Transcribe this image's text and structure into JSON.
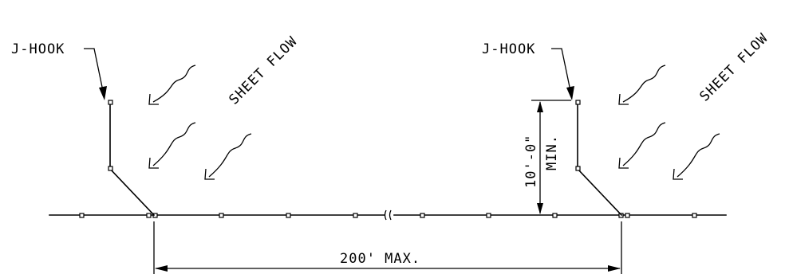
{
  "labels": {
    "jhook_left": "J-HOOK",
    "jhook_right": "J-HOOK",
    "sheet_flow_left": "SHEET FLOW",
    "sheet_flow_right": "SHEET FLOW",
    "height_dimension": "10'-0\"",
    "height_dimension_note": "MIN.",
    "spacing_dimension": "200' MAX."
  }
}
